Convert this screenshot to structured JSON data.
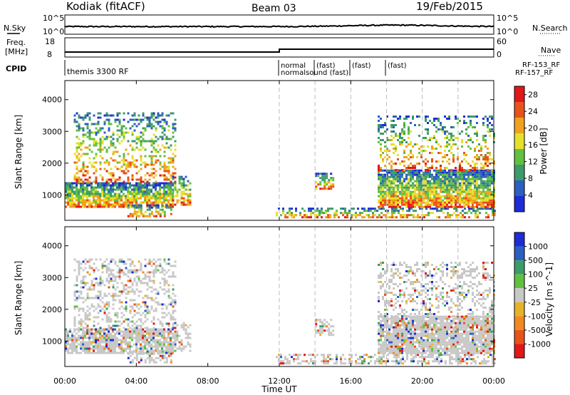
{
  "header": {
    "station": "Kodiak (fitACF)",
    "beam": "Beam 03",
    "date": "19/Feb/2015"
  },
  "top_panels": {
    "nsky_label": "N.Sky",
    "nsky_tick_hi": "10^5",
    "nsky_tick_lo": "10^0",
    "nsearch_label": "N.Search",
    "nsearch_tick_hi": "10^5",
    "nsearch_tick_lo": "10^0",
    "freq_label": "Freq.",
    "freq_unit": "[MHz]",
    "freq_tick_hi": "18",
    "freq_tick_lo": "8",
    "nave_label": "Nave",
    "nave_tick_hi": "60",
    "nave_tick_lo": "0",
    "cpid_label": "CPID",
    "cpid_entries": [
      "themis 3300 RF",
      "normal",
      "normalsound (fast)",
      "(fast)",
      "(fast)",
      "(fast)",
      "RF-153_RF",
      "RF-157_RF"
    ]
  },
  "chart_data": [
    {
      "type": "heatmap",
      "name": "power",
      "xlabel": "Time UT",
      "ylabel": "Slant Range [km]",
      "x_ticks": [
        "00:00",
        "04:00",
        "08:00",
        "12:00",
        "16:00",
        "20:00",
        "00:00"
      ],
      "xlim_hours": [
        0,
        24
      ],
      "y_ticks": [
        1000,
        2000,
        3000,
        4000
      ],
      "ylim": [
        200,
        4600
      ],
      "colorbar_label": "Power [dB]",
      "colorbar_ticks": [
        4,
        8,
        12,
        16,
        20,
        24,
        28
      ],
      "colorbar_range": [
        0,
        30
      ],
      "colors": [
        "#1e2bd6",
        "#2b5fc0",
        "#3d9a6a",
        "#62c040",
        "#e6e02a",
        "#f0a21e",
        "#e8531c",
        "#e01818"
      ],
      "mode_change_hours": [
        12,
        14,
        16,
        18,
        20,
        22
      ]
    },
    {
      "type": "heatmap",
      "name": "velocity",
      "xlabel": "Time UT",
      "ylabel": "Slant Range [km]",
      "x_ticks": [
        "00:00",
        "04:00",
        "08:00",
        "12:00",
        "16:00",
        "20:00",
        "00:00"
      ],
      "xlim_hours": [
        0,
        24
      ],
      "y_ticks": [
        1000,
        2000,
        3000,
        4000
      ],
      "ylim": [
        200,
        4600
      ],
      "colorbar_label": "Velocity [m s^-1]",
      "colorbar_ticks": [
        1000,
        500,
        100,
        25,
        -25,
        -100,
        -500,
        -1000
      ],
      "colors": [
        "#1e2bd6",
        "#2b5fc0",
        "#3d9a6a",
        "#62c040",
        "#c8c8c8",
        "#e6b22a",
        "#f08a1e",
        "#e8531c",
        "#e01818"
      ],
      "mode_change_hours": [
        12,
        14,
        16,
        18,
        20,
        22
      ]
    }
  ]
}
